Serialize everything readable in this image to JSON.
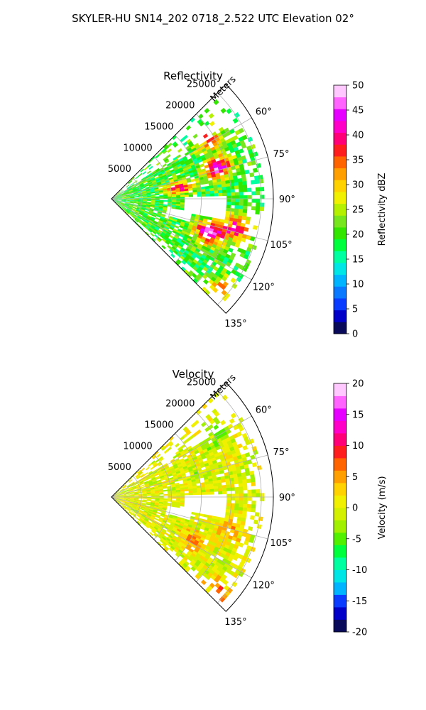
{
  "suptitle": "SKYLER-HU  SN14_202  0718_2.522 UTC Elevation 02°",
  "chart_data": [
    {
      "type": "heatmap",
      "projection": "polar-sector",
      "title": "Reflectivity",
      "range_label": "Meters",
      "range_ticks": [
        5000,
        10000,
        15000,
        20000,
        25000
      ],
      "range_tick_labels": [
        "5000",
        "10000",
        "15000",
        "20000",
        "25000"
      ],
      "azimuth_ticks": [
        60,
        75,
        90,
        105,
        120,
        135
      ],
      "azimuth_tick_labels": [
        "60°",
        "75°",
        "90°",
        "105°",
        "120°",
        "135°"
      ],
      "azimuth_range": [
        45,
        135
      ],
      "colorbar": {
        "label": "Reflectivity dBZ",
        "range": [
          0,
          50
        ],
        "ticks": [
          0,
          5,
          10,
          15,
          20,
          25,
          30,
          35,
          40,
          45,
          50
        ],
        "colors": [
          "#0a0a5a",
          "#0000c8",
          "#0a3cff",
          "#0a78ff",
          "#00b4ff",
          "#00e6e6",
          "#00ffa0",
          "#00ff3c",
          "#32e600",
          "#78e61e",
          "#b4f000",
          "#f0f000",
          "#ffd200",
          "#ffa000",
          "#ff6400",
          "#ff1e1e",
          "#ff0078",
          "#ff00c8",
          "#e600ff",
          "#ff64ff",
          "#ffc8ff"
        ]
      },
      "grid": true,
      "features": [
        {
          "az": 58,
          "r": 18500,
          "value": 35
        },
        {
          "az": 73,
          "r": 18000,
          "value": 44
        },
        {
          "az": 80,
          "r": 11000,
          "value": 37
        },
        {
          "az": 102,
          "r": 21000,
          "value": 38
        },
        {
          "az": 108,
          "r": 17000,
          "value": 45
        },
        {
          "az": 130,
          "r": 23500,
          "value": 33
        }
      ]
    },
    {
      "type": "heatmap",
      "projection": "polar-sector",
      "title": "Velocity",
      "range_label": "Meters",
      "range_ticks": [
        5000,
        10000,
        15000,
        20000,
        25000
      ],
      "range_tick_labels": [
        "5000",
        "10000",
        "15000",
        "20000",
        "25000"
      ],
      "azimuth_ticks": [
        60,
        75,
        90,
        105,
        120,
        135
      ],
      "azimuth_tick_labels": [
        "60°",
        "75°",
        "90°",
        "105°",
        "120°",
        "135°"
      ],
      "azimuth_range": [
        45,
        135
      ],
      "colorbar": {
        "label": "Velocity (m/s)",
        "range": [
          -20,
          20
        ],
        "ticks": [
          -20,
          -15,
          -10,
          -5,
          0,
          5,
          10,
          15,
          20
        ],
        "colors": [
          "#0a0a5a",
          "#0000c8",
          "#0a3cff",
          "#00b4ff",
          "#00e6e6",
          "#00ffa0",
          "#00ff3c",
          "#50f000",
          "#a0f000",
          "#d2f000",
          "#f0f000",
          "#ffd200",
          "#ffa000",
          "#ff6400",
          "#ff1e1e",
          "#ff0078",
          "#ff00c8",
          "#e600ff",
          "#ff64ff",
          "#ffc8ff"
        ]
      },
      "grid": true,
      "features": [
        {
          "az": 60,
          "r": 20000,
          "value": -3
        },
        {
          "az": 75,
          "r": 14000,
          "value": -2
        },
        {
          "az": 95,
          "r": 12000,
          "value": 1
        },
        {
          "az": 105,
          "r": 20000,
          "value": 4
        },
        {
          "az": 118,
          "r": 15000,
          "value": 5
        },
        {
          "az": 130,
          "r": 23500,
          "value": 6
        }
      ]
    }
  ]
}
